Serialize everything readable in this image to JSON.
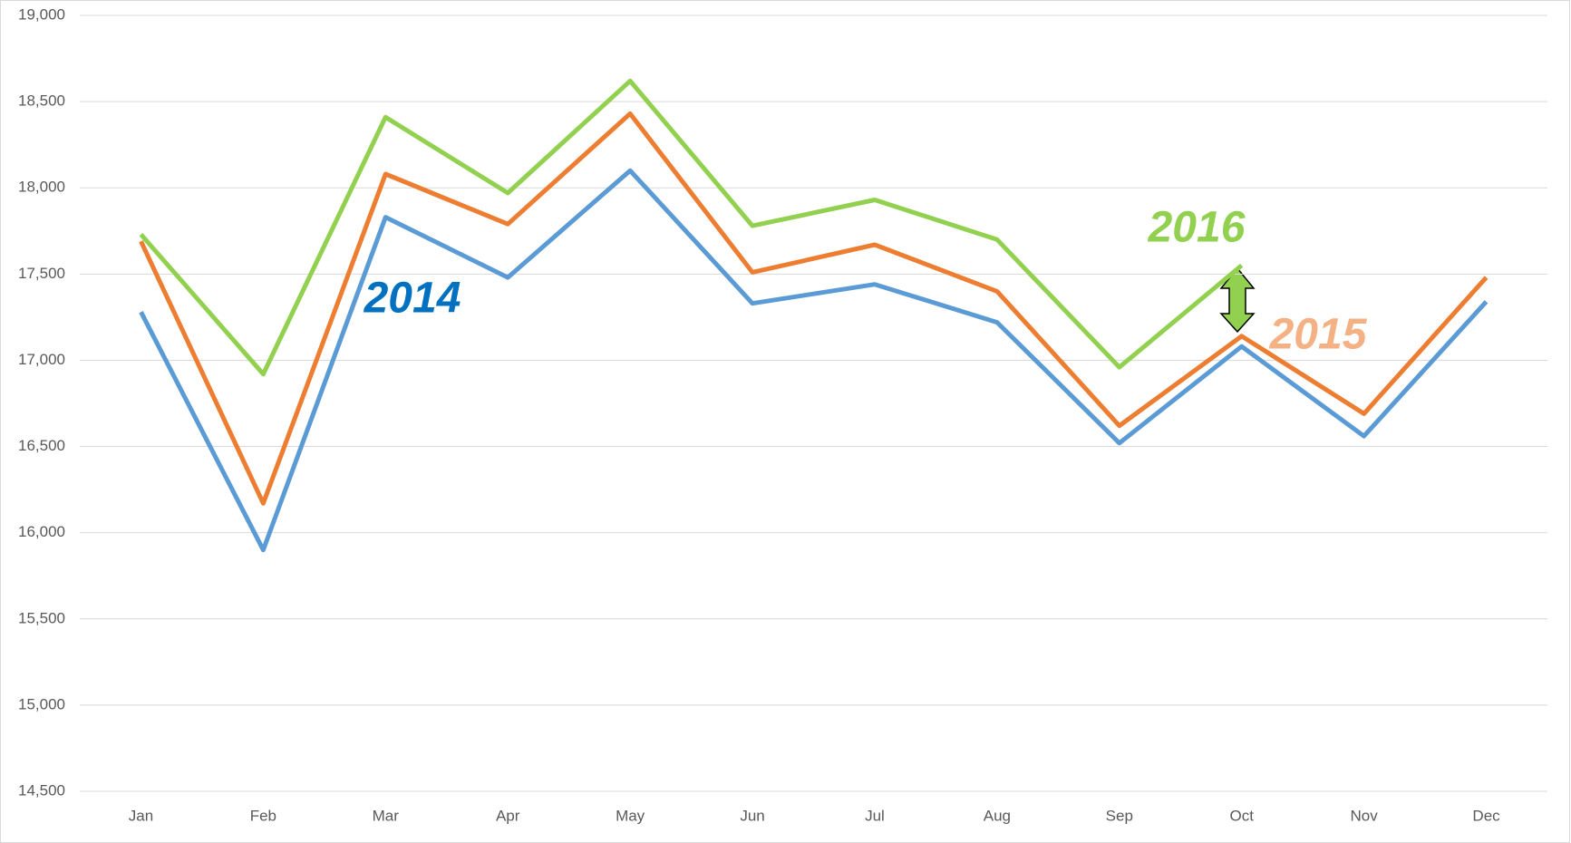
{
  "chart_data": {
    "type": "line",
    "categories": [
      "Jan",
      "Feb",
      "Mar",
      "Apr",
      "May",
      "Jun",
      "Jul",
      "Aug",
      "Sep",
      "Oct",
      "Nov",
      "Dec"
    ],
    "series": [
      {
        "name": "2014",
        "color": "#5b9bd5",
        "label_color": "#0070c0",
        "values": [
          17280,
          15900,
          17830,
          17480,
          18100,
          17330,
          17440,
          17220,
          16520,
          17080,
          16560,
          17340
        ]
      },
      {
        "name": "2015",
        "color": "#ed7d31",
        "label_color": "#f4b183",
        "values": [
          17690,
          16170,
          18080,
          17790,
          18430,
          17510,
          17670,
          17400,
          16620,
          17140,
          16690,
          17480
        ]
      },
      {
        "name": "2016",
        "color": "#92d050",
        "label_color": "#92d050",
        "values": [
          17730,
          16920,
          18410,
          17970,
          18620,
          17780,
          17930,
          17700,
          16960,
          17550,
          null,
          null
        ]
      }
    ],
    "ylim": [
      14500,
      19000
    ],
    "yticks": [
      {
        "value": 14500,
        "label": "14,500"
      },
      {
        "value": 15000,
        "label": "15,000"
      },
      {
        "value": 15500,
        "label": "15,500"
      },
      {
        "value": 16000,
        "label": "16,000"
      },
      {
        "value": 16500,
        "label": "16,500"
      },
      {
        "value": 17000,
        "label": "17,000"
      },
      {
        "value": 17500,
        "label": "17,500"
      },
      {
        "value": 18000,
        "label": "18,000"
      },
      {
        "value": 18500,
        "label": "18,500"
      },
      {
        "value": 19000,
        "label": "19,000"
      }
    ],
    "grid": true
  }
}
